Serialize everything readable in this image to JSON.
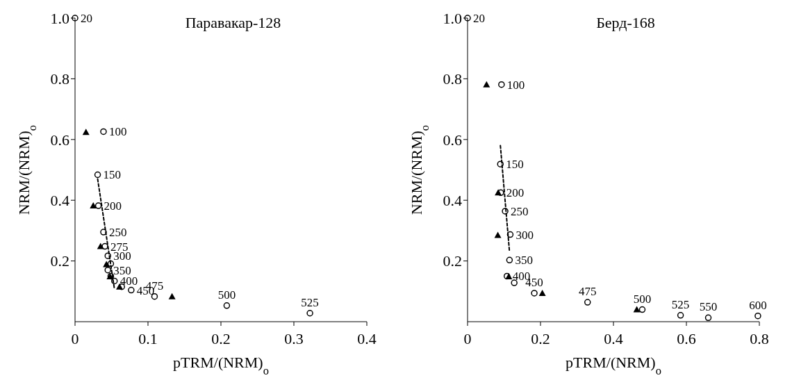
{
  "chart_data": [
    {
      "type": "scatter",
      "title": "Паравакар-128",
      "xlabel": "pTRM/(NRM)$_{o}$",
      "ylabel": "NRM/(NRM)$_{o}$",
      "xlim": [
        0,
        0.4
      ],
      "xticks": [
        0,
        0.1,
        0.2,
        0.3,
        0.4
      ],
      "ylim": [
        0,
        1
      ],
      "yticks": [
        0.2,
        0.4,
        0.6,
        0.8,
        {
          "value": 1,
          "label": "1.0"
        }
      ],
      "series": [
        {
          "type": "scatter",
          "marker": "circle",
          "color": "#000000",
          "x": [
            0,
            0.039,
            0.031,
            0.032,
            0.039,
            0.041,
            0.045,
            0.049,
            0.045,
            0.049,
            0.054,
            0.064,
            0.077,
            0.109,
            0.208,
            0.322
          ],
          "values": [
            1,
            0.626,
            0.484,
            0.382,
            0.295,
            0.248,
            0.217,
            0.191,
            0.17,
            0.15,
            0.134,
            0.115,
            0.104,
            0.083,
            0.053,
            0.028
          ]
        },
        {
          "type": "scatter",
          "marker": "triangle",
          "color": "#000000",
          "x": [
            0.015,
            0.025,
            0.035,
            0.043,
            0.048,
            0.061,
            0.133
          ],
          "values": [
            0.624,
            0.382,
            0.248,
            0.189,
            0.149,
            0.115,
            0.083
          ]
        },
        {
          "type": "line",
          "marker": "none",
          "line_style": "dashed",
          "color": "#000000",
          "x": [
            0.031,
            0.054
          ],
          "values": [
            0.47,
            0.108
          ]
        }
      ],
      "annotations": [
        {
          "text": "20",
          "x": 0,
          "y": 1
        },
        {
          "text": "100",
          "x": 0.039,
          "y": 0.626
        },
        {
          "text": "150",
          "x": 0.031,
          "y": 0.484
        },
        {
          "text": "200",
          "x": 0.032,
          "y": 0.382
        },
        {
          "text": "250",
          "x": 0.039,
          "y": 0.295
        },
        {
          "text": "275",
          "x": 0.041,
          "y": 0.248
        },
        {
          "text": "300",
          "x": 0.045,
          "y": 0.217
        },
        {
          "text": "350",
          "x": 0.045,
          "y": 0.17
        },
        {
          "text": "400",
          "x": 0.054,
          "y": 0.134
        },
        {
          "text": "450",
          "x": 0.077,
          "y": 0.104
        },
        {
          "text": "475",
          "x": 0.109,
          "y": 0.083
        },
        {
          "text": "500",
          "x": 0.208,
          "y": 0.053
        },
        {
          "text": "525",
          "x": 0.322,
          "y": 0.028
        }
      ]
    },
    {
      "type": "scatter",
      "title": "Берд-168",
      "xlabel": "pTRM/(NRM)$_{o}$",
      "ylabel": "NRM/(NRM)$_{o}$",
      "xlim": [
        0,
        0.8
      ],
      "xticks": [
        0,
        0.2,
        0.4,
        0.6,
        0.8
      ],
      "ylim": [
        0,
        1
      ],
      "yticks": [
        0.2,
        0.4,
        0.6,
        0.8,
        {
          "value": 1,
          "label": "1.0"
        }
      ],
      "series": [
        {
          "type": "scatter",
          "marker": "circle",
          "color": "#000000",
          "x": [
            0,
            0.093,
            0.09,
            0.091,
            0.103,
            0.117,
            0.115,
            0.108,
            0.128,
            0.183,
            0.329,
            0.479,
            0.584,
            0.66,
            0.796
          ],
          "values": [
            1,
            0.781,
            0.519,
            0.425,
            0.364,
            0.287,
            0.203,
            0.15,
            0.128,
            0.094,
            0.064,
            0.04,
            0.021,
            0.013,
            0.019
          ]
        },
        {
          "type": "scatter",
          "marker": "triangle",
          "color": "#000000",
          "x": [
            0.052,
            0.084,
            0.083,
            0.113,
            0.205,
            0.464
          ],
          "values": [
            0.781,
            0.425,
            0.285,
            0.149,
            0.094,
            0.04
          ]
        },
        {
          "type": "line",
          "marker": "none",
          "line_style": "dashed",
          "color": "#000000",
          "x": [
            0.09,
            0.115
          ],
          "values": [
            0.58,
            0.23
          ]
        }
      ],
      "annotations": [
        {
          "text": "20",
          "x": 0,
          "y": 1
        },
        {
          "text": "100",
          "x": 0.093,
          "y": 0.781
        },
        {
          "text": "150",
          "x": 0.09,
          "y": 0.519
        },
        {
          "text": "200",
          "x": 0.091,
          "y": 0.425
        },
        {
          "text": "250",
          "x": 0.103,
          "y": 0.364
        },
        {
          "text": "300",
          "x": 0.117,
          "y": 0.287
        },
        {
          "text": "350",
          "x": 0.115,
          "y": 0.203
        },
        {
          "text": "400",
          "x": 0.108,
          "y": 0.15
        },
        {
          "text": "450",
          "x": 0.183,
          "y": 0.094
        },
        {
          "text": "475",
          "x": 0.329,
          "y": 0.064
        },
        {
          "text": "500",
          "x": 0.479,
          "y": 0.04
        },
        {
          "text": "525",
          "x": 0.584,
          "y": 0.021
        },
        {
          "text": "550",
          "x": 0.66,
          "y": 0.013
        },
        {
          "text": "600",
          "x": 0.796,
          "y": 0.019
        }
      ]
    }
  ]
}
